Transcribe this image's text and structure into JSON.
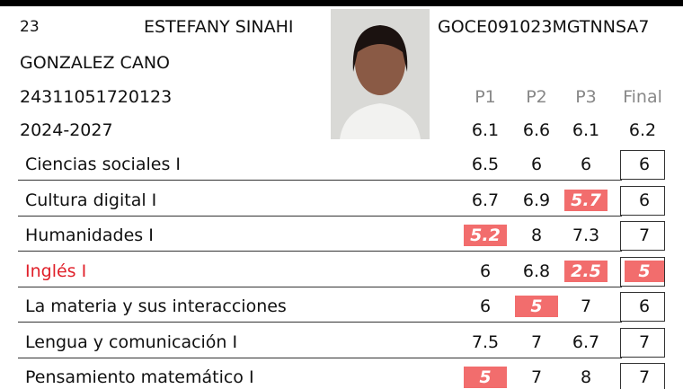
{
  "record": {
    "number": "23",
    "name": [
      "ESTEFANY SINAHI",
      "GONZALEZ CANO"
    ],
    "id": "24311051720123",
    "period": "2024-2027",
    "curp": "GOCE091023MGTNNSA7",
    "columns": [
      "P1",
      "P2",
      "P3",
      "Final"
    ],
    "averages": [
      6.1,
      6.6,
      6.1,
      6.2
    ],
    "subjects": [
      {
        "name": "Ciencias sociales I",
        "grades": [
          6.5,
          6,
          6,
          6
        ]
      },
      {
        "name": "Cultura digital I",
        "grades": [
          6.7,
          6.9,
          5.7,
          6
        ]
      },
      {
        "name": "Humanidades I",
        "grades": [
          5.2,
          8,
          7.3,
          7
        ]
      },
      {
        "name": "Inglés I",
        "grades": [
          6,
          6.8,
          2.5,
          5
        ]
      },
      {
        "name": "La materia y sus interacciones",
        "grades": [
          6,
          5,
          7,
          6
        ]
      },
      {
        "name": "Lengua y comunicación I",
        "grades": [
          7.5,
          7,
          6.7,
          7
        ]
      },
      {
        "name": "Pensamiento matemático I",
        "grades": [
          5,
          7,
          8,
          7
        ]
      }
    ]
  }
}
